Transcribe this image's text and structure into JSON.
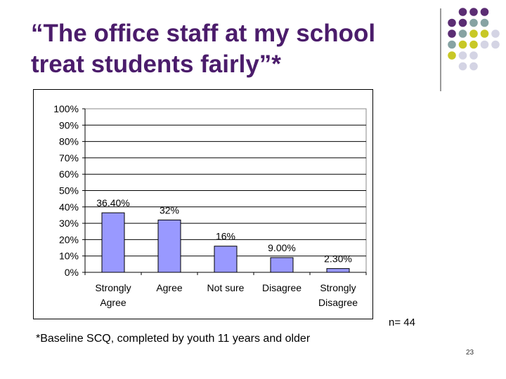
{
  "slide": {
    "title_line1": "“The office staff at my school",
    "title_line2": "treat students fairly”*",
    "n_label": "n= 44",
    "footnote": "*Baseline SCQ, completed by youth 11 years and older",
    "page_number": "23",
    "decor_colors": {
      "purple": "#5b2d73",
      "teal": "#87a3a3",
      "yellow": "#c8c826",
      "lavender": "#d4d4e4"
    }
  },
  "chart_data": {
    "type": "bar",
    "categories": [
      [
        "Strongly",
        "Agree"
      ],
      [
        "Agree"
      ],
      [
        "Not sure"
      ],
      [
        "Disagree"
      ],
      [
        "Strongly",
        "Disagree"
      ]
    ],
    "values": [
      36.4,
      32,
      16,
      9,
      2.3
    ],
    "data_labels": [
      "36.40%",
      "32%",
      "16%",
      "9.00%",
      "2.30%"
    ],
    "y_ticks": [
      "0%",
      "10%",
      "20%",
      "30%",
      "40%",
      "50%",
      "60%",
      "70%",
      "80%",
      "90%",
      "100%"
    ],
    "ylim": [
      0,
      100
    ],
    "grid": true,
    "bar_color": "#9999ff"
  }
}
